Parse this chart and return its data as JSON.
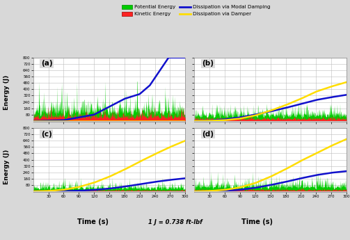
{
  "subplot_labels": [
    "(a)",
    "(b)",
    "(c)",
    "(d)"
  ],
  "xlabel": "Time (s)",
  "ylabel": "Energy (J)",
  "note": "1 J = 0.738 ft-lbf",
  "xlim": [
    0,
    300
  ],
  "ylim": [
    0,
    800
  ],
  "yticks": [
    80,
    160,
    240,
    320,
    400,
    480,
    560,
    640,
    720,
    800
  ],
  "xticks": [
    30,
    60,
    90,
    120,
    150,
    180,
    210,
    240,
    270,
    300
  ],
  "pe_color": "#00cc00",
  "ke_color": "#ff2222",
  "modal_color": "#1111cc",
  "damper_color": "#ffdd00",
  "bg_color": "#d8d8d8",
  "plot_bg": "#ffffff",
  "tick_strip_color": "#c8c8c8",
  "legend_pe": "Potential Energy",
  "legend_ke": "Kinetic Energy",
  "legend_modal": "Dissipation via Modal Damping",
  "legend_damper": "Dissipation via Damper"
}
